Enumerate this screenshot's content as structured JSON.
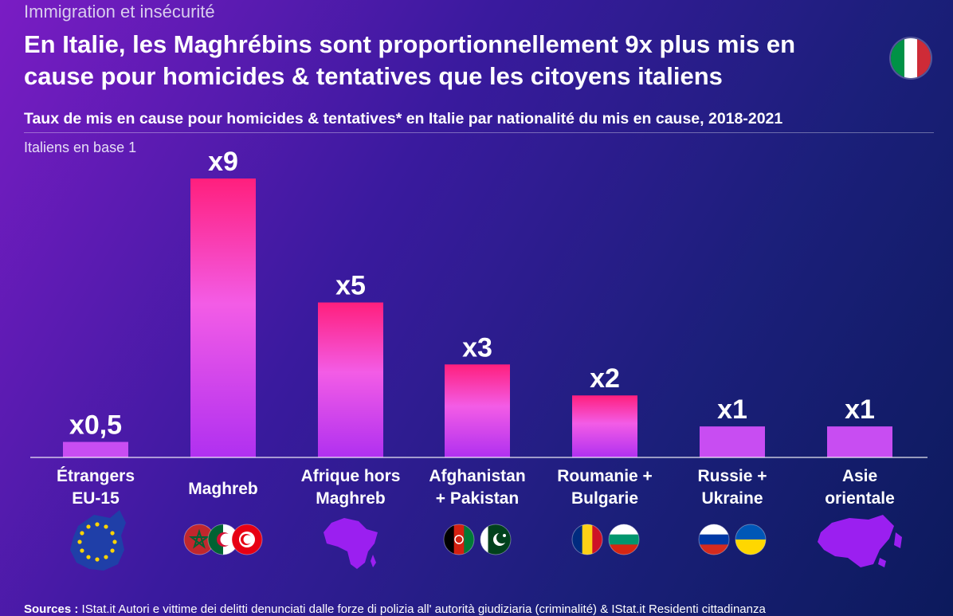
{
  "header": {
    "overline": "Immigration et insécurité",
    "title": "En Italie, les Maghrébins sont proportionnellement 9x plus mis en cause pour homicides & tentatives que les citoyens italiens",
    "subtitle": "Taux de mis en cause pour homicides & tentatives* en Italie par nationalité du mis en cause, 2018-2021",
    "base_note": "Italiens en base 1",
    "flag_icon": "italy-flag-icon"
  },
  "colors": {
    "background_start": "#7a1cc4",
    "background_end": "#0c1a5c",
    "bar_top_highlight": "#ff1f7d",
    "bar_pink": "#f35ce6",
    "bar_bottom": "#b030f0",
    "bar_small": "#c84df2",
    "shape_fill": "#9b1ff0",
    "eu_blue": "#1f3fa8"
  },
  "chart_data": {
    "type": "bar",
    "title": "",
    "xlabel": "",
    "ylabel": "",
    "ylim": [
      0,
      9
    ],
    "grid": false,
    "categories": [
      [
        "Étrangers",
        "EU-15"
      ],
      [
        "Maghreb"
      ],
      [
        "Afrique hors",
        "Maghreb"
      ],
      [
        "Afghanistan",
        "+ Pakistan"
      ],
      [
        "Roumanie +",
        "Bulgarie"
      ],
      [
        "Russie +",
        "Ukraine"
      ],
      [
        "Asie",
        "orientale"
      ]
    ],
    "values": [
      0.5,
      9,
      5,
      3,
      2,
      1,
      1
    ],
    "value_labels": [
      "x0,5",
      "x9",
      "x5",
      "x3",
      "x2",
      "x1",
      "x1"
    ],
    "icons": [
      [
        "eu-map-icon"
      ],
      [
        "morocco-flag-icon",
        "algeria-flag-icon",
        "tunisia-flag-icon"
      ],
      [
        "africa-map-icon"
      ],
      [
        "afghanistan-flag-icon",
        "pakistan-flag-icon"
      ],
      [
        "romania-flag-icon",
        "bulgaria-flag-icon"
      ],
      [
        "russia-flag-icon",
        "ukraine-flag-icon"
      ],
      [
        "east-asia-map-icon"
      ]
    ]
  },
  "footer": {
    "sources_label": "Sources :",
    "sources_text": "IStat.it Autori e vittime dei delitti denunciati dalle forze di polizia all' autorità giudiziaria (criminalité) & IStat.it Residenti cittadinanza"
  }
}
